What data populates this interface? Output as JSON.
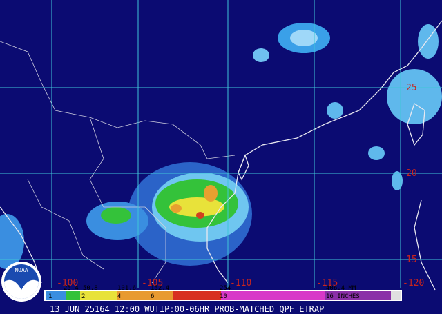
{
  "map": {
    "lat_labels": [
      "25",
      "20",
      "15"
    ],
    "lon_labels": [
      "-100",
      "-105",
      "-110",
      "-115",
      "-120"
    ]
  },
  "legend": {
    "mm": [
      "25.4",
      "50.8",
      "101.6",
      "152.4",
      "254",
      "406.4 MM"
    ],
    "inches": [
      "1",
      "2",
      "4",
      "6",
      "10",
      "16 INCHES"
    ]
  },
  "footer": "13 JUN 25164 12:00 WUTIP:00-06HR PROB-MATCHED QPF ETRAP",
  "logo": "NOAA"
}
